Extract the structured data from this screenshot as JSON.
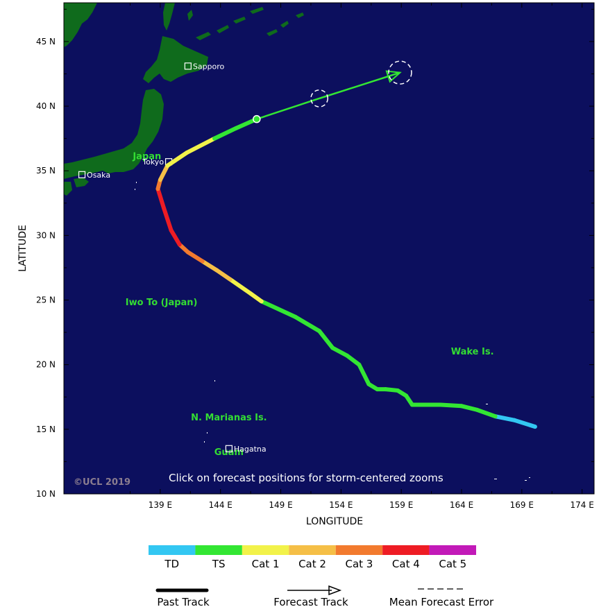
{
  "axes": {
    "xlabel": "LONGITUDE",
    "ylabel": "LATITUDE",
    "x_ticks": [
      "139 E",
      "144 E",
      "149 E",
      "154 E",
      "159 E",
      "164 E",
      "169 E",
      "174 E"
    ],
    "y_ticks": [
      "45 N",
      "40 N",
      "35 N",
      "30 N",
      "25 N",
      "20 N",
      "15 N",
      "10 N"
    ],
    "xlim": [
      131,
      175
    ],
    "ylim": [
      10,
      48
    ]
  },
  "colors": {
    "ocean": "#0c0f5e",
    "land": "#0f6b1c",
    "TD": "#33c7f2",
    "TS": "#33e633",
    "Cat 1": "#f2f24a",
    "Cat 2": "#f5bf47",
    "Cat 3": "#f27a2e",
    "Cat 4": "#ee1c24",
    "Cat 5": "#c21ab8"
  },
  "places": [
    {
      "name": "Japan",
      "lon": 137.9,
      "lat": 35.9
    },
    {
      "name": "Iwo To (Japan)",
      "lon": 139.1,
      "lat": 24.6
    },
    {
      "name": "Wake Is.",
      "lon": 164.9,
      "lat": 20.8
    },
    {
      "name": "N. Marianas Is.",
      "lon": 144.7,
      "lat": 15.7
    },
    {
      "name": "Guam",
      "lon": 144.7,
      "lat": 13.0
    }
  ],
  "cities": [
    {
      "name": "Sapporo",
      "lon": 141.3,
      "lat": 43.1
    },
    {
      "name": "Tokyo",
      "lon": 139.7,
      "lat": 35.7
    },
    {
      "name": "Osaka",
      "lon": 132.5,
      "lat": 34.7
    },
    {
      "name": "Hagatna",
      "lon": 144.7,
      "lat": 13.5
    }
  ],
  "past_track": [
    {
      "lon": 170.1,
      "lat": 15.2,
      "cat": "TD"
    },
    {
      "lon": 168.4,
      "lat": 15.7,
      "cat": "TD"
    },
    {
      "lon": 166.8,
      "lat": 16.0,
      "cat": "TD"
    },
    {
      "lon": 165.3,
      "lat": 16.5,
      "cat": "TS"
    },
    {
      "lon": 164.0,
      "lat": 16.8,
      "cat": "TS"
    },
    {
      "lon": 162.2,
      "lat": 16.9,
      "cat": "TS"
    },
    {
      "lon": 160.8,
      "lat": 16.9,
      "cat": "TS"
    },
    {
      "lon": 159.9,
      "lat": 16.9,
      "cat": "TS"
    },
    {
      "lon": 159.4,
      "lat": 17.6,
      "cat": "TS"
    },
    {
      "lon": 158.7,
      "lat": 18.0,
      "cat": "TS"
    },
    {
      "lon": 157.7,
      "lat": 18.1,
      "cat": "TS"
    },
    {
      "lon": 157.0,
      "lat": 18.1,
      "cat": "TS"
    },
    {
      "lon": 156.3,
      "lat": 18.5,
      "cat": "TS"
    },
    {
      "lon": 155.5,
      "lat": 20.0,
      "cat": "TS"
    },
    {
      "lon": 154.5,
      "lat": 20.7,
      "cat": "TS"
    },
    {
      "lon": 153.3,
      "lat": 21.3,
      "cat": "TS"
    },
    {
      "lon": 152.2,
      "lat": 22.6,
      "cat": "TS"
    },
    {
      "lon": 150.2,
      "lat": 23.7,
      "cat": "TS"
    },
    {
      "lon": 147.4,
      "lat": 24.9,
      "cat": "TS"
    },
    {
      "lon": 146.5,
      "lat": 25.5,
      "cat": "Cat 1"
    },
    {
      "lon": 144.8,
      "lat": 26.6,
      "cat": "Cat 1"
    },
    {
      "lon": 143.7,
      "lat": 27.3,
      "cat": "Cat 2"
    },
    {
      "lon": 142.5,
      "lat": 28.0,
      "cat": "Cat 2"
    },
    {
      "lon": 141.3,
      "lat": 28.7,
      "cat": "Cat 3"
    },
    {
      "lon": 140.6,
      "lat": 29.3,
      "cat": "Cat 3"
    },
    {
      "lon": 139.9,
      "lat": 30.4,
      "cat": "Cat 4"
    },
    {
      "lon": 139.3,
      "lat": 32.1,
      "cat": "Cat 4"
    },
    {
      "lon": 138.8,
      "lat": 33.6,
      "cat": "Cat 4"
    },
    {
      "lon": 139.0,
      "lat": 34.3,
      "cat": "Cat 3"
    },
    {
      "lon": 139.6,
      "lat": 35.4,
      "cat": "Cat 2"
    },
    {
      "lon": 141.2,
      "lat": 36.4,
      "cat": "Cat 1"
    },
    {
      "lon": 143.5,
      "lat": 37.5,
      "cat": "Cat 1"
    },
    {
      "lon": 145.3,
      "lat": 38.3,
      "cat": "TS"
    },
    {
      "lon": 147.0,
      "lat": 39.0,
      "cat": "TS"
    }
  ],
  "forecast_track": [
    {
      "lon": 147.0,
      "lat": 39.0
    },
    {
      "lon": 152.2,
      "lat": 40.6
    },
    {
      "lon": 158.9,
      "lat": 42.6
    }
  ],
  "forecast_error": [
    {
      "lon": 152.2,
      "lat": 40.6,
      "radius_deg": 0.7
    },
    {
      "lon": 158.9,
      "lat": 42.6,
      "radius_deg": 0.95
    }
  ],
  "annotations": {
    "note": "Click on forecast positions for storm-centered zooms",
    "copyright": "©UCL 2019"
  },
  "legend": {
    "categories": [
      "TD",
      "TS",
      "Cat 1",
      "Cat 2",
      "Cat 3",
      "Cat 4",
      "Cat 5"
    ],
    "past_track": "Past Track",
    "forecast_track": "Forecast Track",
    "mean_forecast_error": "Mean Forecast Error"
  }
}
